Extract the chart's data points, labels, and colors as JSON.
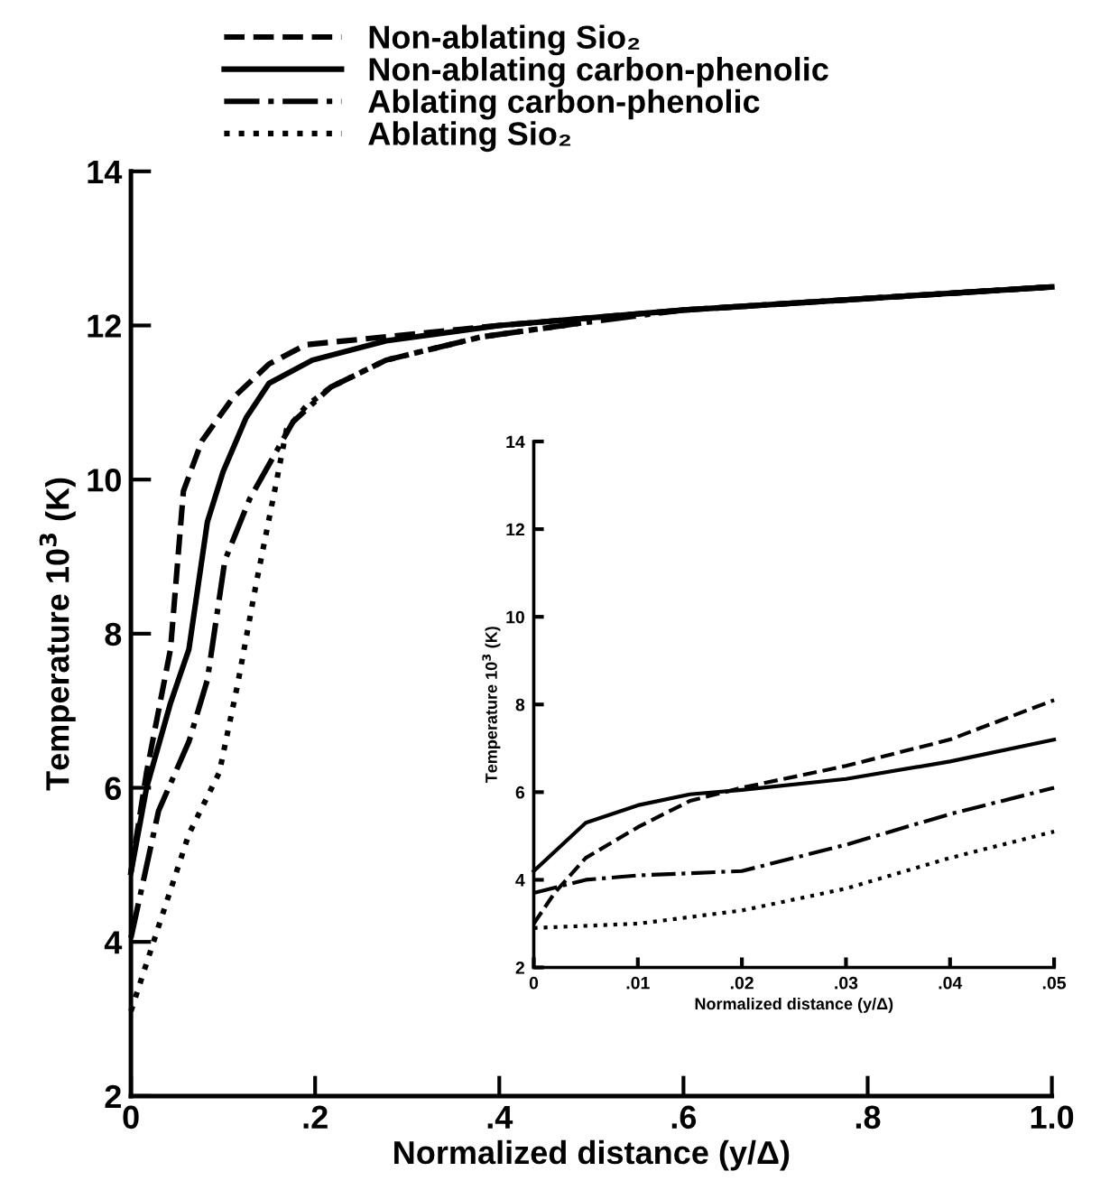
{
  "chart_data": [
    {
      "type": "line",
      "xlabel": "Normalized distance (y/Δ)",
      "ylabel": "Temperature 10$^{3}$ (K)",
      "legend": "top",
      "grid": false,
      "xlim": [
        0,
        1.0
      ],
      "ylim": [
        2,
        14
      ],
      "xticks": [
        {
          "value": 0,
          "label": "0"
        },
        {
          "value": 0.2,
          "label": ".2"
        },
        {
          "value": 0.4,
          "label": ".4"
        },
        {
          "value": 0.6,
          "label": ".6"
        },
        {
          "value": 0.8,
          "label": ".8"
        },
        {
          "value": 1.0,
          "label": "1.0"
        }
      ],
      "yticks": [
        2,
        4,
        6,
        8,
        10,
        12,
        14
      ],
      "series": [
        {
          "name": "Non-ablating Sio₂",
          "color": "#000000",
          "line_style": "dashed",
          "x": [
            0,
            0.017,
            0.043,
            0.057,
            0.077,
            0.11,
            0.15,
            0.19,
            0.4,
            0.6,
            0.8,
            1.0
          ],
          "values": [
            4.9,
            6.2,
            7.8,
            9.85,
            10.5,
            11.05,
            11.5,
            11.75,
            12.0,
            12.2,
            12.35,
            12.5
          ]
        },
        {
          "name": "Non-ablating carbon-phenolic",
          "color": "#000000",
          "line_style": "solid",
          "x": [
            0,
            0.017,
            0.043,
            0.063,
            0.083,
            0.1,
            0.125,
            0.15,
            0.197,
            0.277,
            0.4,
            0.6,
            0.8,
            1.0
          ],
          "values": [
            4.9,
            6.0,
            7.1,
            7.8,
            9.45,
            10.1,
            10.8,
            11.25,
            11.55,
            11.8,
            12.0,
            12.2,
            12.35,
            12.5
          ]
        },
        {
          "name": "Ablating carbon-phenolic",
          "color": "#000000",
          "line_style": "dashdot",
          "x": [
            0,
            0.03,
            0.063,
            0.083,
            0.102,
            0.129,
            0.176,
            0.217,
            0.277,
            0.38,
            0.5,
            0.6,
            0.8,
            1.0
          ],
          "values": [
            4.05,
            5.7,
            6.6,
            7.4,
            8.95,
            9.75,
            10.75,
            11.2,
            11.55,
            11.85,
            12.05,
            12.2,
            12.35,
            12.5
          ]
        },
        {
          "name": "Ablating Sio₂",
          "color": "#000000",
          "line_style": "dotted",
          "x": [
            0,
            0.03,
            0.063,
            0.096,
            0.116,
            0.136,
            0.156,
            0.169,
            0.19,
            0.217,
            0.277,
            0.38,
            0.5
          ],
          "values": [
            3.1,
            4.2,
            5.4,
            6.2,
            7.35,
            8.65,
            9.85,
            10.65,
            10.95,
            11.2,
            11.55,
            11.85,
            12.05
          ]
        }
      ]
    },
    {
      "type": "line",
      "xlabel": "Normalized distance (y/Δ)",
      "ylabel": "Temperature 10$^{3}$ (K)",
      "grid": false,
      "xlim": [
        0,
        0.05
      ],
      "ylim": [
        2,
        14
      ],
      "xticks": [
        {
          "value": 0,
          "label": "0"
        },
        {
          "value": 0.01,
          "label": ".01"
        },
        {
          "value": 0.02,
          "label": ".02"
        },
        {
          "value": 0.03,
          "label": ".03"
        },
        {
          "value": 0.04,
          "label": ".04"
        },
        {
          "value": 0.05,
          "label": ".05"
        }
      ],
      "yticks": [
        2,
        4,
        6,
        8,
        10,
        12,
        14
      ],
      "series": [
        {
          "color": "#000000",
          "line_style": "dashed",
          "x": [
            0,
            0.002,
            0.005,
            0.01,
            0.015,
            0.02,
            0.03,
            0.04,
            0.05
          ],
          "values": [
            3.0,
            3.7,
            4.5,
            5.2,
            5.8,
            6.1,
            6.6,
            7.2,
            8.1
          ]
        },
        {
          "color": "#000000",
          "line_style": "solid",
          "x": [
            0,
            0.005,
            0.01,
            0.015,
            0.02,
            0.03,
            0.04,
            0.05
          ],
          "values": [
            4.2,
            5.3,
            5.7,
            5.95,
            6.05,
            6.3,
            6.7,
            7.2
          ]
        },
        {
          "color": "#000000",
          "line_style": "dashdot",
          "x": [
            0,
            0.005,
            0.01,
            0.02,
            0.03,
            0.04,
            0.05
          ],
          "values": [
            3.7,
            4.0,
            4.1,
            4.2,
            4.8,
            5.5,
            6.1
          ]
        },
        {
          "color": "#000000",
          "line_style": "dotted",
          "x": [
            0,
            0.01,
            0.02,
            0.03,
            0.04,
            0.05
          ],
          "values": [
            2.9,
            3.0,
            3.3,
            3.8,
            4.5,
            5.1
          ]
        }
      ]
    }
  ]
}
